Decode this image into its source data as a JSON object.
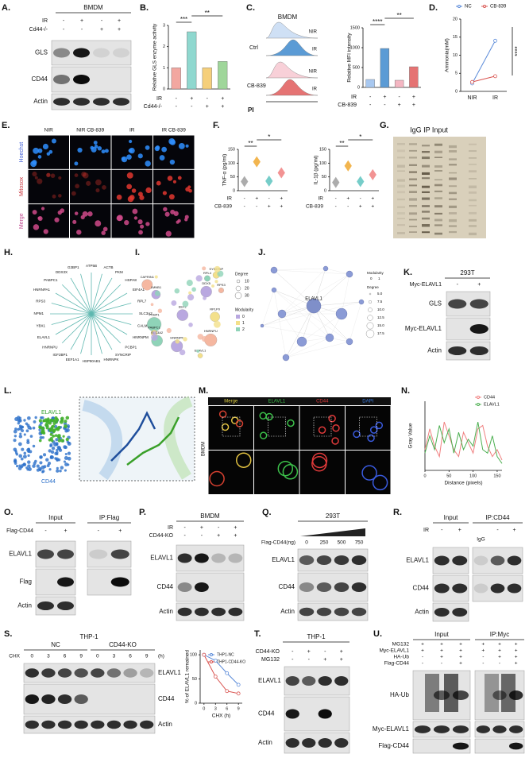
{
  "panels": {
    "A": {
      "letter": "A.",
      "header": "BMDM",
      "conditions": [
        {
          "name": "IR",
          "signs": [
            "-",
            "+",
            "-",
            "+"
          ]
        },
        {
          "name": "Cd44-/-",
          "signs": [
            "-",
            "-",
            "+",
            "+"
          ]
        }
      ],
      "blots": [
        "GLS",
        "CD44",
        "Actin"
      ]
    },
    "B": {
      "letter": "B.",
      "chart": {
        "type": "bar",
        "ylabel": "Relative GLS enzyme activity",
        "values": [
          1.0,
          2.7,
          1.0,
          1.3
        ],
        "colors": [
          "#f2a7a0",
          "#8fd8cf",
          "#f5cf7a",
          "#9fd69a"
        ],
        "ylim": [
          0,
          3
        ],
        "yticks": [
          0,
          1,
          2,
          3
        ],
        "significance": [
          "***",
          "**"
        ]
      },
      "conditions": [
        {
          "name": "IR",
          "signs": [
            "-",
            "+",
            "-",
            "+"
          ]
        },
        {
          "name": "Cd44-/-",
          "signs": [
            "-",
            "-",
            "+",
            "+"
          ]
        }
      ]
    },
    "C": {
      "letter": "C.",
      "title": "BMDM",
      "groups": [
        "Ctrl",
        "CB-839"
      ],
      "tracks": [
        "NIR",
        "IR",
        "NIR",
        "IR"
      ],
      "xlabel": "PI",
      "chart": {
        "type": "bar",
        "ylabel": "Relative MFI intensity",
        "values": [
          200,
          980,
          180,
          520
        ],
        "colors": [
          "#a8c8f0",
          "#5b9bd5",
          "#f4b6c2",
          "#e57373"
        ],
        "ylim": [
          0,
          1500
        ],
        "yticks": [
          0,
          500,
          1000,
          1500
        ],
        "significance": [
          "****",
          "**"
        ]
      },
      "conditions": [
        {
          "name": "IR",
          "signs": [
            "-",
            "+",
            "-",
            "+"
          ]
        },
        {
          "name": "CB-839",
          "signs": [
            "-",
            "-",
            "+",
            "+"
          ]
        }
      ]
    },
    "D": {
      "letter": "D.",
      "chart": {
        "type": "line",
        "ylabel": "Ammonia(mM)",
        "categories": [
          "NIR",
          "IR"
        ],
        "series": [
          {
            "name": "NC",
            "color": "#5b8bd9",
            "values": [
              2.2,
              14
            ]
          },
          {
            "name": "CB-839",
            "color": "#d9534f",
            "values": [
              2.6,
              4.2
            ]
          }
        ],
        "ylim": [
          0,
          20
        ],
        "yticks": [
          0,
          5,
          10,
          15,
          20
        ],
        "markers": true,
        "significance": "****"
      }
    },
    "E": {
      "letter": "E.",
      "columns": [
        "NIR",
        "NIR CB-839",
        "IR",
        "IR CB-839"
      ],
      "rows": [
        "Hoechst",
        "Mitosox",
        "Merge"
      ]
    },
    "F": {
      "letter": "F.",
      "charts": [
        {
          "type": "violin",
          "ylabel": "TNF-α (pg/ml)",
          "values": [
            33,
            105,
            35,
            65
          ],
          "colors": [
            "#9e9e9e",
            "#f0a830",
            "#5ec4c0",
            "#f08080"
          ],
          "ylim": [
            0,
            150
          ],
          "yticks": [
            0,
            50,
            100,
            150
          ],
          "significance": [
            "**",
            "*"
          ],
          "conditions": [
            {
              "name": "IR",
              "signs": [
                "-",
                "+",
                "-",
                "+"
              ]
            },
            {
              "name": "CB-839",
              "signs": [
                "-",
                "-",
                "+",
                "+"
              ]
            }
          ]
        },
        {
          "type": "violin",
          "ylabel": "IL-1β (pg/ml)",
          "values": [
            30,
            90,
            33,
            58
          ],
          "colors": [
            "#9e9e9e",
            "#f0a830",
            "#5ec4c0",
            "#f08080"
          ],
          "ylim": [
            0,
            150
          ],
          "yticks": [
            0,
            50,
            100,
            150
          ],
          "significance": [
            "**",
            "*"
          ],
          "conditions": [
            {
              "name": "IR",
              "signs": [
                "-",
                "+",
                "-",
                "+"
              ]
            },
            {
              "name": "CB-839",
              "signs": [
                "-",
                "-",
                "+",
                "+"
              ]
            }
          ]
        }
      ]
    },
    "G": {
      "letter": "G.",
      "title": "IgG IP Input"
    },
    "H": {
      "letter": "H.",
      "nodes": [
        "SLC3A2",
        "CALM",
        "HNRNPM",
        "PCBP1",
        "SYNCRIP",
        "HNRNPK",
        "HSP90AB1",
        "EEF1A1",
        "IGF2BP1",
        "HNRNPU",
        "ELAVL1",
        "YBX1",
        "NPM1",
        "RPS3",
        "HNRNPA1",
        "PABPC1",
        "DDX3X",
        "G3BP1",
        "ATP5B",
        "ACTB",
        "PKM",
        "HSPA8",
        "EIF4A1",
        "RPL7"
      ]
    },
    "I": {
      "letter": "I.",
      "nodes": [
        "HNRNPF",
        "ELAVL1",
        "PCBP1",
        "RPS3",
        "DDX5",
        "SYNCRIP",
        "RPL4",
        "HNRNPU",
        "EEF2",
        "PABPC1",
        "SLC3A2",
        "CAPRIN1",
        "LMNB1",
        "RPLP0"
      ],
      "legend": {
        "degree_title": "Degree",
        "degree": [
          10,
          20,
          30
        ],
        "modularity_title": "Modularity",
        "modularity": [
          0,
          1,
          2
        ]
      }
    },
    "J": {
      "letter": "J.",
      "center": "ELAVL1",
      "legend": {
        "modularity_title": "Modularity",
        "modularity": [
          0,
          1
        ],
        "degree_title": "Degree",
        "degree": [
          "5.0",
          "7.5",
          "10.0",
          "12.5",
          "15.0",
          "17.5"
        ]
      }
    },
    "K": {
      "letter": "K.",
      "header": "293T",
      "conditions": [
        {
          "name": "Myc-ELAVL1",
          "signs": [
            "-",
            "+"
          ]
        }
      ],
      "blots": [
        "GLS",
        "Myc-ELAVL1",
        "Actin"
      ]
    },
    "L": {
      "letter": "L.",
      "labels": [
        "ELAVL1",
        "CD44"
      ]
    },
    "M": {
      "letter": "M.",
      "columns": [
        "Merge",
        "ELAVL1",
        "CD44",
        "DAPI"
      ],
      "side": "BMDM"
    },
    "N": {
      "letter": "N.",
      "chart": {
        "type": "line",
        "xlabel": "Distance (pixels)",
        "ylabel": "Gray Value",
        "x": [
          0,
          10,
          20,
          30,
          40,
          50,
          60,
          70,
          80,
          90,
          100,
          110,
          120,
          130,
          140,
          150,
          160
        ],
        "series": [
          {
            "name": "CD44",
            "color": "#f08080",
            "values": [
              60,
              120,
              70,
              40,
              140,
              100,
              60,
              40,
              110,
              80,
              50,
              120,
              130,
              70,
              40,
              60,
              30
            ]
          },
          {
            "name": "ELAVL1",
            "color": "#4caf50",
            "values": [
              50,
              100,
              60,
              130,
              80,
              120,
              50,
              110,
              60,
              90,
              70,
              140,
              60,
              50,
              100,
              40,
              20
            ]
          }
        ],
        "xlim": [
          0,
          160
        ],
        "xticks": [
          0,
          50,
          100,
          150
        ],
        "ylim": [
          0,
          200
        ]
      }
    },
    "O": {
      "letter": "O.",
      "headers": [
        "Input",
        "IP:Flag"
      ],
      "conditions": [
        {
          "name": "Flag-CD44",
          "signs": [
            "-",
            "+",
            "-",
            "+"
          ]
        }
      ],
      "blots": [
        "ELAVL1",
        "Flag",
        "Actin"
      ]
    },
    "P": {
      "letter": "P.",
      "header": "BMDM",
      "conditions": [
        {
          "name": "IR",
          "signs": [
            "-",
            "+",
            "-",
            "+"
          ]
        },
        {
          "name": "CD44-KO",
          "signs": [
            "-",
            "-",
            "+",
            "+"
          ]
        }
      ],
      "blots": [
        "ELAVL1",
        "CD44",
        "Actin"
      ]
    },
    "Q": {
      "letter": "Q.",
      "header": "293T",
      "conditions": [
        {
          "name": "Flag-CD44(ng)",
          "signs": [
            "0",
            "250",
            "500",
            "750"
          ]
        }
      ],
      "blots": [
        "ELAVL1",
        "CD44",
        "Actin"
      ]
    },
    "R": {
      "letter": "R.",
      "headers": [
        "Input",
        "IP:CD44"
      ],
      "conditions": [
        {
          "name": "IR",
          "signs": [
            "-",
            "+",
            "-",
            "+"
          ]
        }
      ],
      "igg": "IgG",
      "blots": [
        "ELAVL1",
        "CD44",
        "Actin"
      ]
    },
    "S": {
      "letter": "S.",
      "header": "THP-1",
      "groups": [
        "NC",
        "CD44-KO"
      ],
      "conditions": [
        {
          "name": "CHX",
          "signs": [
            "0",
            "3",
            "6",
            "9",
            "0",
            "3",
            "6",
            "9"
          ]
        }
      ],
      "unit": "(h)",
      "blots": [
        "ELAVL1",
        "CD44",
        "Actin"
      ],
      "chart": {
        "type": "line",
        "ylabel": "% of ELAVL1 remained",
        "xlabel": "CHX (h)",
        "x": [
          0,
          3,
          6,
          9
        ],
        "series": [
          {
            "name": "THP1-NC",
            "color": "#5b8bd9",
            "values": [
              100,
              88,
              62,
              38
            ]
          },
          {
            "name": "THP1-CD44-KO",
            "color": "#d9534f",
            "values": [
              100,
              55,
              25,
              20
            ]
          }
        ],
        "xlim": [
          -1,
          10
        ],
        "xticks": [
          0,
          3,
          6,
          9
        ],
        "ylim": [
          0,
          110
        ],
        "yticks": [
          0,
          50,
          100
        ],
        "markers": true
      }
    },
    "T": {
      "letter": "T.",
      "header": "THP-1",
      "conditions": [
        {
          "name": "CD44-KO",
          "signs": [
            "-",
            "+",
            "-",
            "+"
          ]
        },
        {
          "name": "MG132",
          "signs": [
            "-",
            "-",
            "+",
            "+"
          ]
        }
      ],
      "blots": [
        "ELAVL1",
        "CD44",
        "Actin"
      ]
    },
    "U": {
      "letter": "U.",
      "headers": [
        "Input",
        "IP:Myc"
      ],
      "conditions": [
        {
          "name": "MG132",
          "signs": [
            "+",
            "+",
            "+",
            "+",
            "+",
            "+"
          ]
        },
        {
          "name": "Myc-ELAVL1",
          "signs": [
            "+",
            "+",
            "+",
            "+",
            "+",
            "+"
          ]
        },
        {
          "name": "HA-Ub",
          "signs": [
            "-",
            "+",
            "+",
            "-",
            "+",
            "+"
          ]
        },
        {
          "name": "Flag-CD44",
          "signs": [
            "-",
            "-",
            "+",
            "-",
            "-",
            "+"
          ]
        }
      ],
      "blots": [
        "HA-Ub",
        "Myc-ELAVL1",
        "Flag-CD44"
      ]
    }
  }
}
